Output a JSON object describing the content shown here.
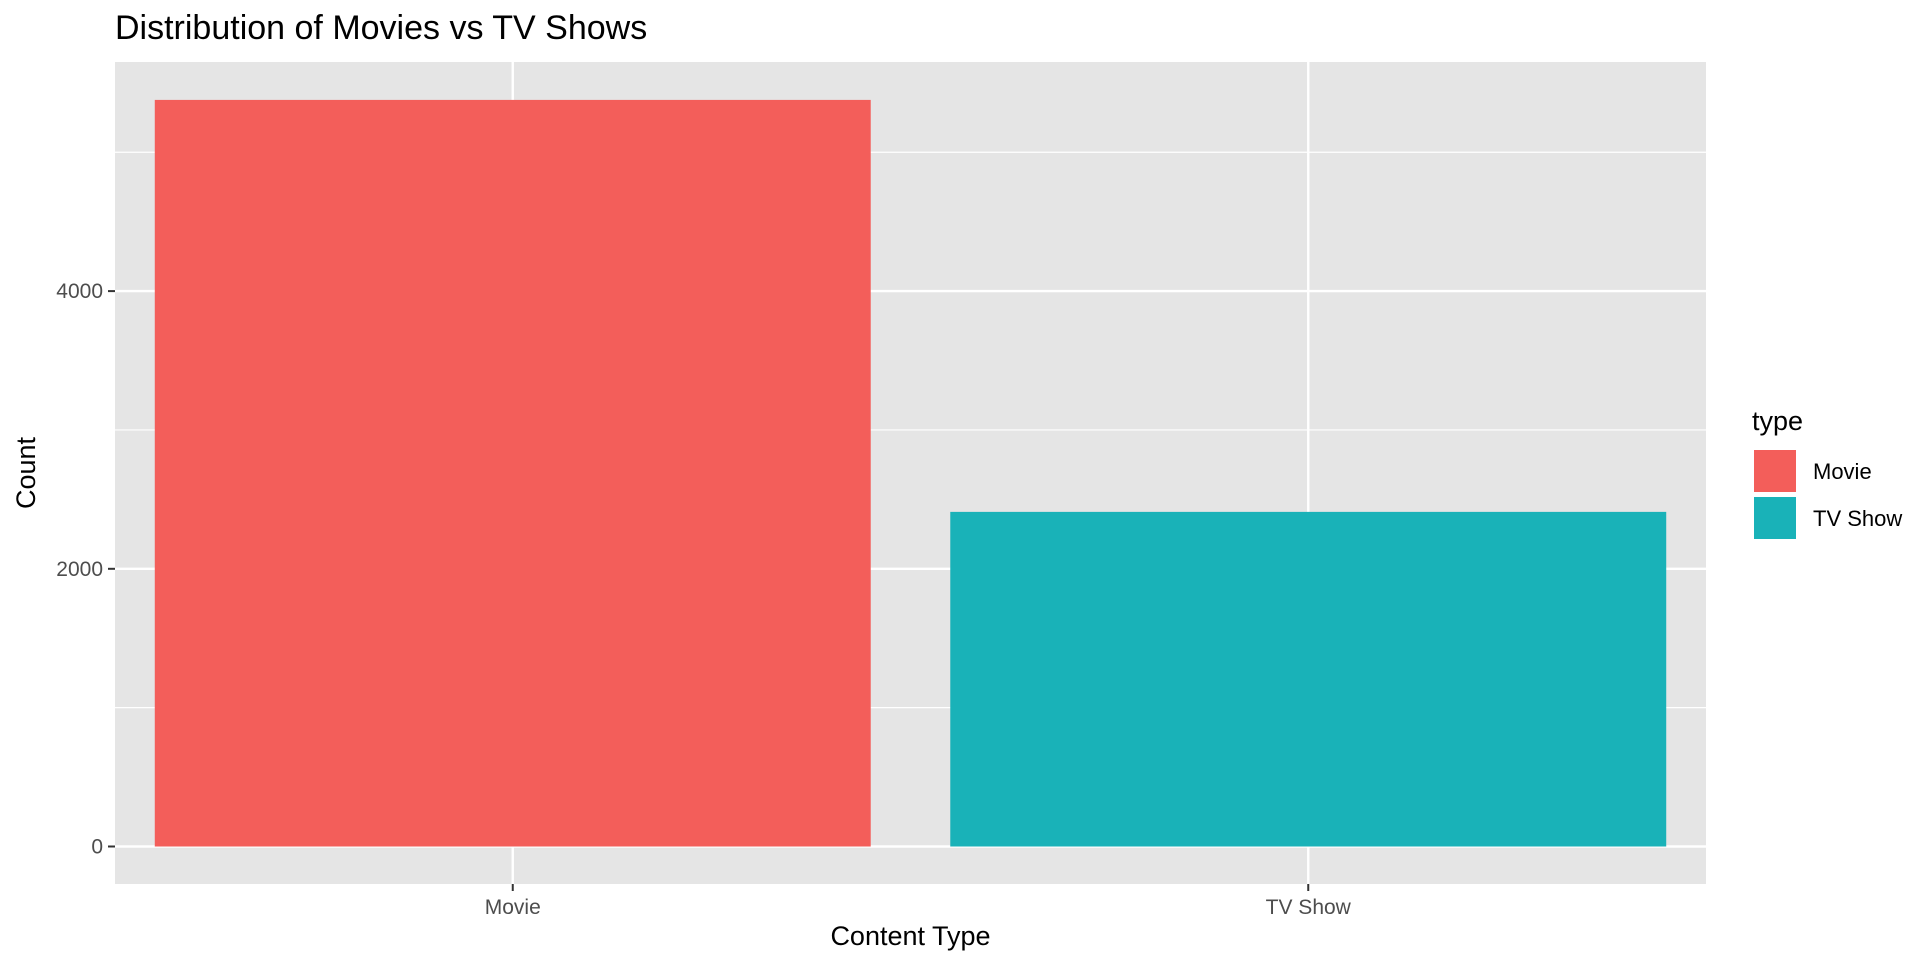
{
  "chart_data": {
    "type": "bar",
    "title": "Distribution of Movies vs TV Shows",
    "xlabel": "Content Type",
    "ylabel": "Count",
    "categories": [
      "Movie",
      "TV Show"
    ],
    "values": [
      5377,
      2410
    ],
    "ylim": [
      -270,
      5650
    ],
    "yticks": [
      0,
      2000,
      4000
    ],
    "ytick_labels": [
      "0",
      "2000",
      "4000"
    ],
    "colors": [
      "#F35E5A",
      "#19B2B8"
    ],
    "grid": true,
    "legend": {
      "title": "type",
      "placement": "right",
      "items": [
        "Movie",
        "TV Show"
      ]
    },
    "panel_background": "#E5E5E5",
    "grid_color": "#FFFFFF"
  }
}
